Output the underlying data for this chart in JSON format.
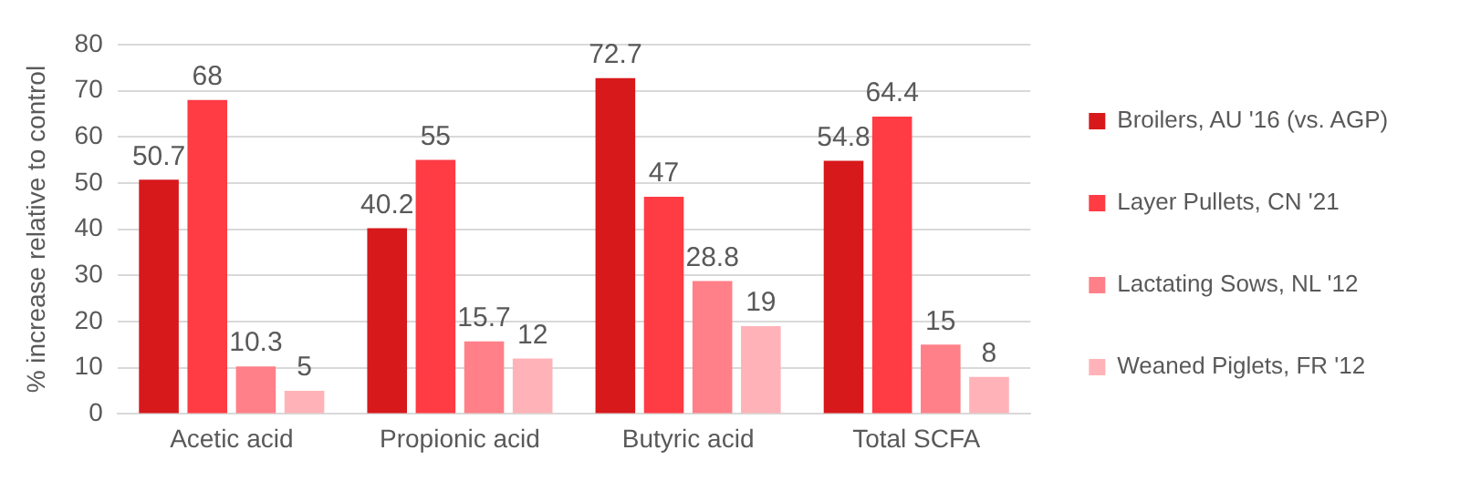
{
  "chart_data": {
    "type": "bar",
    "ylabel": "% increase relative to control",
    "categories": [
      "Acetic acid",
      "Propionic acid",
      "Butyric acid",
      "Total SCFA"
    ],
    "series": [
      {
        "name": "Broilers, AU '16 (vs. AGP)",
        "color": "#d7191c",
        "values": [
          50.7,
          40.2,
          72.7,
          54.8
        ]
      },
      {
        "name": "Layer Pullets, CN '21",
        "color": "#ff3b44",
        "values": [
          68,
          55,
          47,
          64.4
        ]
      },
      {
        "name": "Lactating Sows, NL '12",
        "color": "#ff8088",
        "values": [
          10.3,
          15.7,
          28.8,
          15
        ]
      },
      {
        "name": "Weaned Piglets, FR '12",
        "color": "#ffb3b8",
        "values": [
          5,
          12,
          19,
          8
        ]
      }
    ],
    "ylim": [
      0,
      80
    ],
    "yticks": [
      0,
      10,
      20,
      30,
      40,
      50,
      60,
      70,
      80
    ],
    "grid": "y",
    "legend": "right",
    "data_labels": true
  }
}
